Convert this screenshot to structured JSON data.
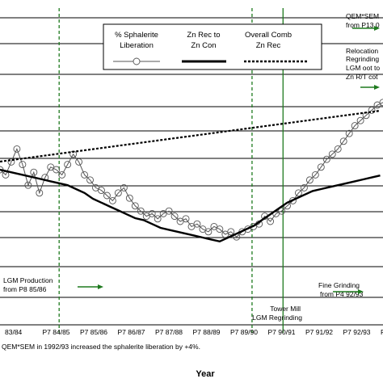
{
  "chart_data": {
    "type": "line",
    "xlabel": "Year",
    "note": "QEM*SEM in 1992/93 increased the sphalerite liberation by +4%.",
    "categories": [
      "83/84",
      "P7 84/85",
      "P7 85/86",
      "P7 86/87",
      "P7 87/88",
      "P7 88/89",
      "P7 89/90",
      "P7 90/91",
      "P7 91/92",
      "P7 92/93",
      "P7 93/94"
    ],
    "grid": true,
    "legend_position": "top",
    "series": [
      {
        "name": "% Sphalerite Liberation",
        "style": "line-with-circles",
        "color": "#555555",
        "points": [
          [
            0.0,
            184
          ],
          [
            0.2,
            180
          ],
          [
            0.4,
            190
          ],
          [
            0.6,
            200
          ],
          [
            0.8,
            188
          ],
          [
            1.0,
            172
          ],
          [
            1.2,
            182
          ],
          [
            1.4,
            166
          ],
          [
            1.6,
            178
          ],
          [
            1.8,
            186
          ],
          [
            2.0,
            184
          ],
          [
            2.2,
            180
          ],
          [
            2.4,
            188
          ],
          [
            2.6,
            196
          ],
          [
            2.8,
            190
          ],
          [
            3.0,
            180
          ],
          [
            3.2,
            176
          ],
          [
            3.4,
            170
          ],
          [
            3.6,
            168
          ],
          [
            3.8,
            164
          ],
          [
            4.0,
            160
          ],
          [
            4.2,
            166
          ],
          [
            4.4,
            170
          ],
          [
            4.6,
            162
          ],
          [
            4.8,
            156
          ],
          [
            5.0,
            152
          ],
          [
            5.2,
            148
          ],
          [
            5.4,
            150
          ],
          [
            5.6,
            146
          ],
          [
            5.8,
            150
          ],
          [
            6.0,
            152
          ],
          [
            6.2,
            148
          ],
          [
            6.4,
            144
          ],
          [
            6.6,
            146
          ],
          [
            6.8,
            140
          ],
          [
            7.0,
            142
          ],
          [
            7.2,
            138
          ],
          [
            7.4,
            136
          ],
          [
            7.6,
            140
          ],
          [
            7.8,
            138
          ],
          [
            8.0,
            134
          ],
          [
            8.2,
            136
          ],
          [
            8.4,
            132
          ],
          [
            8.6,
            136
          ],
          [
            8.8,
            138
          ],
          [
            9.0,
            140
          ],
          [
            9.2,
            142
          ],
          [
            9.4,
            148
          ],
          [
            9.6,
            144
          ],
          [
            9.8,
            150
          ],
          [
            10.0,
            152
          ],
          [
            10.2,
            156
          ],
          [
            10.4,
            160
          ],
          [
            10.6,
            166
          ],
          [
            10.8,
            170
          ],
          [
            11.0,
            176
          ],
          [
            11.2,
            180
          ],
          [
            11.4,
            186
          ],
          [
            11.6,
            192
          ],
          [
            11.8,
            196
          ],
          [
            12.0,
            200
          ],
          [
            12.2,
            206
          ],
          [
            12.4,
            212
          ],
          [
            12.6,
            218
          ],
          [
            12.8,
            222
          ],
          [
            13.0,
            226
          ],
          [
            13.2,
            230
          ],
          [
            13.4,
            234
          ],
          [
            13.6,
            236
          ]
        ]
      },
      {
        "name": "Zn Rec to Zn Con",
        "style": "solid-thick",
        "color": "#000000",
        "points": [
          [
            0.0,
            200
          ],
          [
            0.3,
            198
          ],
          [
            0.6,
            196
          ],
          [
            0.9,
            194
          ],
          [
            1.2,
            192
          ],
          [
            1.5,
            190
          ],
          [
            1.8,
            188
          ],
          [
            2.1,
            186
          ],
          [
            2.4,
            184
          ],
          [
            2.7,
            180
          ],
          [
            3.0,
            176
          ],
          [
            3.3,
            170
          ],
          [
            3.6,
            166
          ],
          [
            3.9,
            162
          ],
          [
            4.2,
            158
          ],
          [
            4.5,
            154
          ],
          [
            4.8,
            150
          ],
          [
            5.1,
            148
          ],
          [
            5.4,
            144
          ],
          [
            5.7,
            140
          ],
          [
            6.0,
            138
          ],
          [
            6.3,
            136
          ],
          [
            6.6,
            134
          ],
          [
            6.9,
            132
          ],
          [
            7.2,
            130
          ],
          [
            7.5,
            128
          ],
          [
            7.8,
            126
          ],
          [
            8.1,
            130
          ],
          [
            8.4,
            134
          ],
          [
            8.7,
            138
          ],
          [
            9.0,
            142
          ],
          [
            9.3,
            148
          ],
          [
            9.6,
            154
          ],
          [
            9.9,
            160
          ],
          [
            10.2,
            166
          ],
          [
            10.5,
            170
          ],
          [
            10.8,
            174
          ],
          [
            11.1,
            178
          ],
          [
            11.4,
            180
          ],
          [
            11.7,
            182
          ],
          [
            12.0,
            184
          ],
          [
            12.3,
            186
          ],
          [
            12.6,
            188
          ],
          [
            12.9,
            190
          ],
          [
            13.2,
            192
          ],
          [
            13.5,
            194
          ]
        ]
      },
      {
        "name": "Overall Comb Zn Rec",
        "style": "dashed-thick",
        "color": "#000000",
        "points": [
          [
            0.0,
            210
          ],
          [
            0.3,
            212
          ],
          [
            0.6,
            214
          ],
          [
            0.9,
            216
          ],
          [
            1.2,
            218
          ],
          [
            1.5,
            220
          ],
          [
            1.8,
            222
          ],
          [
            2.1,
            224
          ],
          [
            2.4,
            226
          ],
          [
            2.7,
            228
          ],
          [
            3.0,
            230
          ],
          [
            3.3,
            232
          ],
          [
            3.6,
            234
          ],
          [
            3.9,
            236
          ],
          [
            4.2,
            238
          ],
          [
            4.5,
            240
          ],
          [
            4.8,
            242
          ],
          [
            5.1,
            244
          ],
          [
            5.4,
            246
          ],
          [
            5.7,
            248
          ],
          [
            6.0,
            250
          ],
          [
            6.3,
            252
          ],
          [
            6.6,
            254
          ],
          [
            6.9,
            256
          ],
          [
            7.2,
            258
          ],
          [
            7.5,
            260
          ],
          [
            7.8,
            262
          ],
          [
            8.1,
            264
          ],
          [
            8.4,
            266
          ],
          [
            8.7,
            268
          ],
          [
            9.0,
            270
          ],
          [
            9.3,
            272
          ],
          [
            9.6,
            274
          ],
          [
            9.9,
            276
          ],
          [
            10.2,
            278
          ],
          [
            10.5,
            280
          ],
          [
            10.8,
            282
          ],
          [
            11.1,
            284
          ],
          [
            11.4,
            286
          ],
          [
            11.7,
            288
          ],
          [
            12.0,
            290
          ],
          [
            12.3,
            292
          ],
          [
            12.6,
            294
          ],
          [
            12.9,
            296
          ],
          [
            13.2,
            298
          ],
          [
            13.5,
            300
          ]
        ]
      }
    ],
    "vlines": [
      {
        "x": 2.1,
        "style": "dashed",
        "color": "#1f7a1f"
      },
      {
        "x": 8.95,
        "style": "dashed",
        "color": "#1f7a1f"
      },
      {
        "x": 10.05,
        "style": "solid",
        "color": "#1f7a1f"
      }
    ],
    "annotations": [
      {
        "text": "LGM Production"
      },
      {
        "text": "from P8 85/86"
      },
      {
        "text": "Tower Mill"
      },
      {
        "text": "LGM Regrinding"
      },
      {
        "text": "Fine Grinding"
      },
      {
        "text": "from P4 92/93"
      },
      {
        "text": "QEM*SEM"
      },
      {
        "text": "from P13 0"
      },
      {
        "text": "Relocation"
      },
      {
        "text": "Regrinding"
      },
      {
        "text": "LGM oot to"
      },
      {
        "text": "Zn R/T cot"
      }
    ],
    "legend_entries": [
      {
        "line1": "% Sphalerite",
        "line2": "Liberation"
      },
      {
        "line1": "Zn Rec to",
        "line2": "Zn Con"
      },
      {
        "line1": "Overall Comb",
        "line2": "Zn Rec"
      }
    ]
  }
}
